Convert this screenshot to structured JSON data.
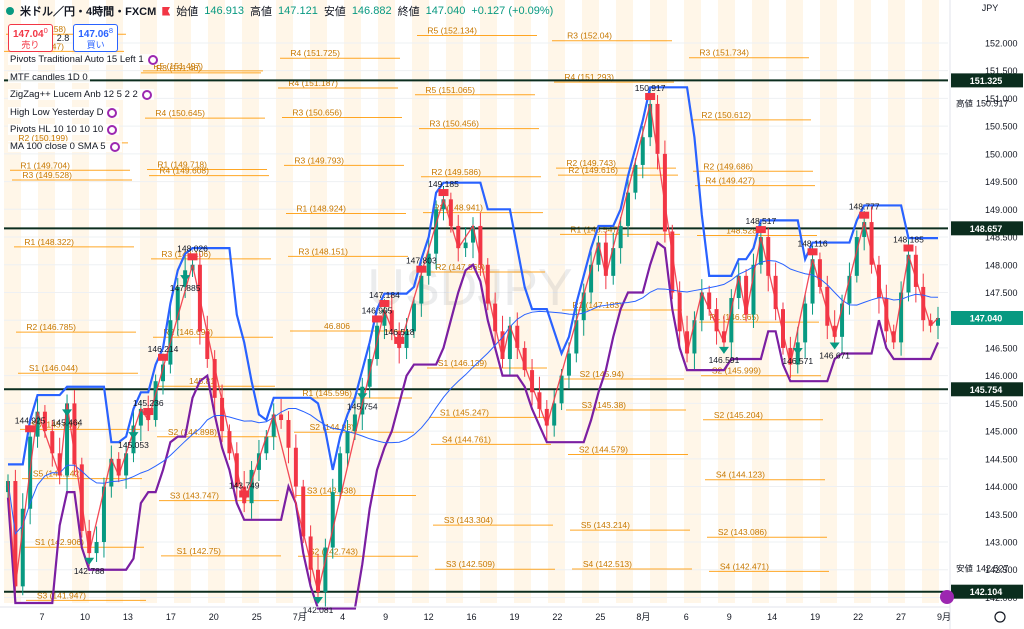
{
  "header": {
    "symbol": "米ドル／円・4時間・FXCM",
    "open_label": "始値",
    "open": "146.913",
    "high_label": "高値",
    "high": "147.121",
    "low_label": "安値",
    "low": "146.882",
    "close_label": "終値",
    "close": "147.040",
    "change": "+0.127 (+0.09%)"
  },
  "trade": {
    "sell_price": "147.04",
    "sell_sup": "0",
    "sell_label": "売り",
    "spread": "2.8",
    "buy_price": "147.06",
    "buy_sup": "8",
    "buy_label": "買い"
  },
  "indicators": [
    "Pivots Traditional Auto 15 Left 1",
    "MTF candles 1D 0",
    "ZigZag++ Lucem Anb 12 5 2 2",
    "High Low Yesterday D",
    "Pivots HL 10 10 10 10",
    "MA 100 close 0 SMA 5"
  ],
  "watermark": "USDJPY",
  "axis": {
    "currency": "JPY",
    "high_label": "高値",
    "high_value": "150.917",
    "low_label": "安値",
    "low_value": "142.527",
    "price_tag": "147.040",
    "tags": [
      "151.325",
      "148.657",
      "145.754",
      "142.104"
    ]
  },
  "colors": {
    "up": "#089981",
    "down": "#f23645",
    "pivot": "#ff9800",
    "hlline": "#2962ff",
    "llline": "#7b1fa2",
    "zigzag": "#26a69a",
    "ma": "#2962ff"
  },
  "chart_data": {
    "type": "candlestick",
    "ylim": [
      141.9,
      152.45
    ],
    "y_ticks": [
      "152.000",
      "151.500",
      "151.000",
      "150.500",
      "150.000",
      "149.500",
      "149.000",
      "148.500",
      "148.000",
      "147.500",
      "147.000",
      "146.500",
      "146.000",
      "145.500",
      "145.000",
      "144.500",
      "144.000",
      "143.500",
      "143.000",
      "142.500",
      "142.000"
    ],
    "x_ticks": [
      "7",
      "10",
      "13",
      "17",
      "20",
      "25",
      "7月",
      "4",
      "9",
      "12",
      "16",
      "19",
      "22",
      "25",
      "8月",
      "6",
      "9",
      "14",
      "19",
      "22",
      "27",
      "9月"
    ],
    "horizontal_levels": [
      151.325,
      148.657,
      145.754,
      142.104
    ],
    "price_path": [
      144.1,
      142.2,
      143.6,
      144.9,
      145.35,
      145.0,
      144.6,
      144.2,
      145.5,
      144.4,
      143.2,
      142.8,
      143.0,
      144.0,
      144.5,
      144.2,
      144.6,
      145.1,
      145.4,
      145.2,
      145.9,
      146.2,
      147.0,
      147.6,
      147.9,
      148.0,
      146.8,
      146.3,
      145.6,
      145.0,
      144.6,
      144.0,
      143.7,
      144.3,
      144.6,
      144.9,
      145.3,
      145.2,
      144.7,
      144.0,
      143.1,
      142.5,
      142.1,
      142.9,
      143.9,
      144.6,
      145.0,
      145.3,
      145.8,
      146.3,
      146.9,
      147.18,
      146.8,
      146.5,
      146.8,
      147.3,
      147.8,
      148.2,
      149.0,
      149.18,
      148.7,
      148.3,
      148.4,
      148.7,
      148.0,
      147.3,
      146.8,
      146.3,
      146.9,
      146.5,
      146.1,
      145.7,
      145.4,
      145.1,
      145.5,
      146.0,
      146.4,
      147.0,
      147.5,
      148.0,
      148.4,
      147.8,
      148.3,
      148.7,
      149.3,
      149.8,
      150.3,
      150.9,
      150.0,
      148.6,
      147.5,
      146.8,
      146.4,
      147.0,
      147.5,
      147.2,
      146.8,
      146.6,
      147.4,
      147.8,
      147.1,
      148.0,
      148.5,
      147.8,
      147.2,
      146.5,
      146.2,
      146.6,
      147.3,
      148.1,
      147.6,
      146.9,
      146.7,
      147.3,
      147.8,
      148.5,
      148.77,
      148.0,
      147.4,
      146.8,
      146.6,
      147.5,
      148.18,
      147.6,
      147.0,
      146.9,
      147.04
    ],
    "swing_labels": [
      {
        "text": "145.464",
        "v": 145.464
      },
      {
        "text": "148.026",
        "v": 148.026
      },
      {
        "text": "147.184",
        "v": 147.184
      },
      {
        "text": "149.185",
        "v": 149.185
      },
      {
        "text": "150.917",
        "v": 150.917
      },
      {
        "text": "148.517",
        "v": 148.517
      },
      {
        "text": "148.116",
        "v": 148.116
      },
      {
        "text": "148.777",
        "v": 148.777
      },
      {
        "text": "148.185",
        "v": 148.185
      },
      {
        "text": "147.885",
        "v": 147.885
      },
      {
        "text": "147.803",
        "v": 147.803
      },
      {
        "text": "146.905",
        "v": 146.905
      },
      {
        "text": "145.236",
        "v": 145.236
      },
      {
        "text": "143.749",
        "v": 143.749
      },
      {
        "text": "142.788",
        "v": 142.788
      },
      {
        "text": "142.081",
        "v": 142.081
      },
      {
        "text": "145.053",
        "v": 145.053
      },
      {
        "text": "145.754",
        "v": 145.754
      },
      {
        "text": "146.518",
        "v": 146.518
      },
      {
        "text": "146.591",
        "v": 146.591
      },
      {
        "text": "146.214",
        "v": 146.214
      },
      {
        "text": "146.671",
        "v": 146.671
      },
      {
        "text": "146.571",
        "v": 146.571
      },
      {
        "text": "144.925",
        "v": 144.925
      }
    ],
    "pivot_levels": [
      {
        "text": "R3 (151.847)",
        "v": 151.847
      },
      {
        "text": "R3 (151.46)",
        "v": 151.46
      },
      {
        "text": "R4 (151.187)",
        "v": 151.187
      },
      {
        "text": "R5 (151.065)",
        "v": 151.065
      },
      {
        "text": "R3 (152.04)",
        "v": 152.04
      },
      {
        "text": "R3 (151.734)",
        "v": 151.734
      },
      {
        "text": "R2 (152.158)",
        "v": 152.158
      },
      {
        "text": "R5 (151.497)",
        "v": 151.497
      },
      {
        "text": "R4 (151.725)",
        "v": 151.725
      },
      {
        "text": "R5 (152.134)",
        "v": 152.134
      },
      {
        "text": "R4 (151.293)",
        "v": 151.293
      },
      {
        "text": "R2 (150.612)",
        "v": 150.612
      },
      {
        "text": "R2 (150.199)",
        "v": 150.199
      },
      {
        "text": "R4 (150.645)",
        "v": 150.645
      },
      {
        "text": "R3 (150.656)",
        "v": 150.656
      },
      {
        "text": "R3 (150.456)",
        "v": 150.456
      },
      {
        "text": "R2 (149.743)",
        "v": 149.743
      },
      {
        "text": "R2 (149.686)",
        "v": 149.686
      },
      {
        "text": "R1 (149.704)",
        "v": 149.704
      },
      {
        "text": "R1 (149.718)",
        "v": 149.718
      },
      {
        "text": "R3 (149.793)",
        "v": 149.793
      },
      {
        "text": "R2 (149.586)",
        "v": 149.586
      },
      {
        "text": "R2 (149.616)",
        "v": 149.616
      },
      {
        "text": "R4 (149.427)",
        "v": 149.427
      },
      {
        "text": "R3 (149.528)",
        "v": 149.528
      },
      {
        "text": "R4 (149.608)",
        "v": 149.608
      },
      {
        "text": "R1 (148.924)",
        "v": 148.924
      },
      {
        "text": "R2 (148.941)",
        "v": 148.941
      },
      {
        "text": "R1 (148.547)",
        "v": 148.547
      },
      {
        "text": "148.528",
        "v": 148.528
      },
      {
        "text": "R1 (148.322)",
        "v": 148.322
      },
      {
        "text": "R3 (148.106)",
        "v": 148.106
      },
      {
        "text": "R3 (148.151)",
        "v": 148.151
      },
      {
        "text": "R2 (147.869)",
        "v": 147.869
      },
      {
        "text": "R1 (147.183)",
        "v": 147.183
      },
      {
        "text": "R1 (146.965)",
        "v": 146.965
      },
      {
        "text": "R2 (146.785)",
        "v": 146.785
      },
      {
        "text": "R2 (146.693)",
        "v": 146.693
      },
      {
        "text": "46.806",
        "v": 146.806
      },
      {
        "text": "S1 (146.139)",
        "v": 146.139
      },
      {
        "text": "S2 (145.94)",
        "v": 145.94
      },
      {
        "text": "S2 (145.999)",
        "v": 145.999
      },
      {
        "text": "S1 (146.044)",
        "v": 146.044
      },
      {
        "text": "145.81",
        "v": 145.81
      },
      {
        "text": "R1 (145.596)",
        "v": 145.596
      },
      {
        "text": "S1 (145.247)",
        "v": 145.247
      },
      {
        "text": "S3 (145.38)",
        "v": 145.38
      },
      {
        "text": "S2 (145.204)",
        "v": 145.204
      },
      {
        "text": "S3 (145.032)",
        "v": 145.032
      },
      {
        "text": "S2 (144.898)",
        "v": 144.898
      },
      {
        "text": "S2 (144.98)",
        "v": 144.98
      },
      {
        "text": "S4 (144.761)",
        "v": 144.761
      },
      {
        "text": "S2 (144.579)",
        "v": 144.579
      },
      {
        "text": "S4 (144.123)",
        "v": 144.123
      },
      {
        "text": "S5 (144.142)",
        "v": 144.142
      },
      {
        "text": "S3 (143.747)",
        "v": 143.747
      },
      {
        "text": "S3 (143.838)",
        "v": 143.838
      },
      {
        "text": "S3 (143.304)",
        "v": 143.304
      },
      {
        "text": "S5 (143.214)",
        "v": 143.214
      },
      {
        "text": "S2 (143.086)",
        "v": 143.086
      },
      {
        "text": "S1 (142.906)",
        "v": 142.906
      },
      {
        "text": "S1 (142.75)",
        "v": 142.75
      },
      {
        "text": "S2 (142.743)",
        "v": 142.743
      },
      {
        "text": "S3 (142.509)",
        "v": 142.509
      },
      {
        "text": "S4 (142.513)",
        "v": 142.513
      },
      {
        "text": "S4 (142.471)",
        "v": 142.471
      },
      {
        "text": "S3 (141.947)",
        "v": 141.947
      }
    ]
  }
}
